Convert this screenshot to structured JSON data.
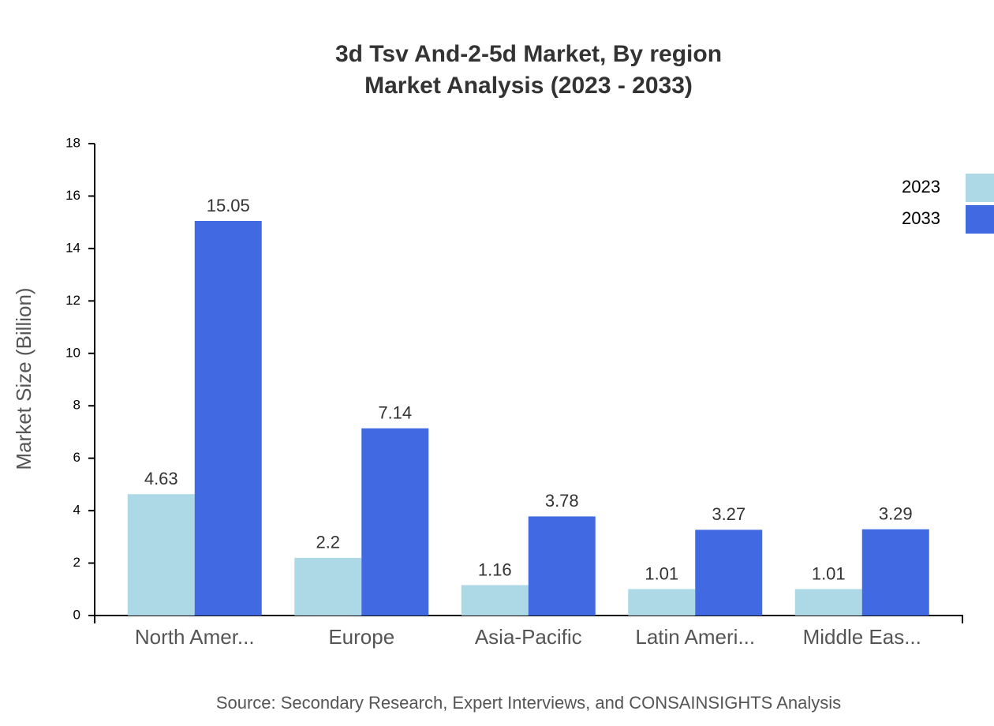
{
  "chart_data": {
    "type": "bar",
    "title": "3d Tsv And-2-5d Market, By region",
    "subtitle": "Market Analysis (2023 - 2033)",
    "y_label": "Market Size (Billion)",
    "source": "Source: Secondary Research, Expert Interviews, and CONSAINSIGHTS Analysis",
    "categories": [
      "North Amer...",
      "Europe",
      "Asia-Pacific",
      "Latin Ameri...",
      "Middle Eas..."
    ],
    "series": [
      {
        "name": "2023",
        "color": "#add8e6",
        "values": [
          4.63,
          2.2,
          1.16,
          1.01,
          1.01
        ]
      },
      {
        "name": "2033",
        "color": "#4169e1",
        "values": [
          15.05,
          7.14,
          3.78,
          3.27,
          3.29
        ]
      }
    ],
    "ylim": [
      0,
      18
    ],
    "yticks": [
      0,
      2,
      4,
      6,
      8,
      10,
      12,
      14,
      16,
      18
    ],
    "legend": "top-right"
  }
}
